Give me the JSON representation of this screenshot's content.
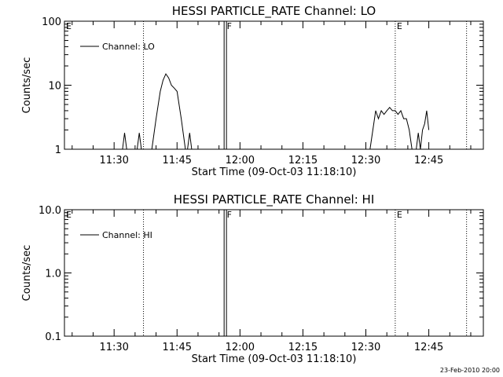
{
  "footer": {
    "timestamp": "23-Feb-2010 20:00"
  },
  "chart_data": [
    {
      "type": "line",
      "title": "HESSI PARTICLE_RATE Channel: LO",
      "xlabel": "Start Time (09-Oct-03 11:18:10)",
      "ylabel": "Counts/sec",
      "yscale": "log",
      "ylim": [
        1,
        100
      ],
      "xlim": [
        "11:18:10",
        "12:58:00"
      ],
      "yticks": [
        {
          "value": 1,
          "label": "1"
        },
        {
          "value": 10,
          "label": "10"
        },
        {
          "value": 100,
          "label": "100"
        }
      ],
      "xticks": [
        "11:30",
        "11:45",
        "12:00",
        "12:15",
        "12:30",
        "12:45"
      ],
      "grid": false,
      "legend": {
        "position": "top-left",
        "entries": [
          "Channel: LO"
        ]
      },
      "markers": [
        {
          "label": "E",
          "time": "11:18:10",
          "style": "none"
        },
        {
          "label": "",
          "time": "11:37:00",
          "style": "dotted"
        },
        {
          "label": "F",
          "time": "11:56:30",
          "style": "solid-double"
        },
        {
          "label": "E",
          "time": "12:37:00",
          "style": "dotted"
        },
        {
          "label": "",
          "time": "12:54:00",
          "style": "dotted"
        }
      ],
      "series": [
        {
          "name": "Channel: LO",
          "segments": [
            {
              "x": [
                "11:32:00",
                "11:32:30",
                "11:33:00"
              ],
              "y": [
                1,
                1.8,
                1
              ]
            },
            {
              "x": [
                "11:35:30",
                "11:36:00",
                "11:36:30"
              ],
              "y": [
                1,
                1.8,
                1
              ]
            },
            {
              "x": [
                "11:39:00",
                "11:40:00",
                "11:41:00",
                "11:41:40",
                "11:42:20",
                "11:43:00",
                "11:43:40",
                "11:44:20",
                "11:45:00",
                "11:46:00",
                "11:47:00"
              ],
              "y": [
                1,
                3,
                8,
                12,
                15,
                13,
                10,
                9,
                8,
                3,
                1
              ]
            },
            {
              "x": [
                "11:47:30",
                "11:48:00",
                "11:48:30"
              ],
              "y": [
                1,
                1.8,
                1
              ]
            },
            {
              "x": [
                "12:31:00",
                "12:31:40",
                "12:32:20",
                "12:33:00",
                "12:33:40",
                "12:34:20",
                "12:35:00",
                "12:35:40",
                "12:36:20",
                "12:37:00",
                "12:37:40",
                "12:38:20",
                "12:39:00",
                "12:39:40",
                "12:40:20",
                "12:41:00"
              ],
              "y": [
                1,
                2,
                4,
                3,
                4,
                3.5,
                4,
                4.5,
                4,
                4,
                3.5,
                4,
                3,
                3,
                2,
                1
              ]
            },
            {
              "x": [
                "12:42:00",
                "12:42:30",
                "12:43:00",
                "12:43:30",
                "12:44:00",
                "12:44:30",
                "12:45:00"
              ],
              "y": [
                1,
                1.8,
                1,
                2,
                2.5,
                4,
                2
              ]
            }
          ]
        }
      ]
    },
    {
      "type": "line",
      "title": "HESSI PARTICLE_RATE Channel: HI",
      "xlabel": "Start Time (09-Oct-03 11:18:10)",
      "ylabel": "Counts/sec",
      "yscale": "log",
      "ylim": [
        0.1,
        10
      ],
      "xlim": [
        "11:18:10",
        "12:58:00"
      ],
      "yticks": [
        {
          "value": 0.1,
          "label": "0.1"
        },
        {
          "value": 1,
          "label": "1.0"
        },
        {
          "value": 10,
          "label": "10.0"
        }
      ],
      "xticks": [
        "11:30",
        "11:45",
        "12:00",
        "12:15",
        "12:30",
        "12:45"
      ],
      "grid": false,
      "legend": {
        "position": "top-left",
        "entries": [
          "Channel: HI"
        ]
      },
      "markers": [
        {
          "label": "E",
          "time": "11:18:10",
          "style": "none"
        },
        {
          "label": "",
          "time": "11:37:00",
          "style": "dotted"
        },
        {
          "label": "F",
          "time": "11:56:30",
          "style": "solid-double"
        },
        {
          "label": "E",
          "time": "12:37:00",
          "style": "dotted"
        },
        {
          "label": "",
          "time": "12:54:00",
          "style": "dotted"
        }
      ],
      "series": [
        {
          "name": "Channel: HI",
          "segments": []
        }
      ]
    }
  ]
}
